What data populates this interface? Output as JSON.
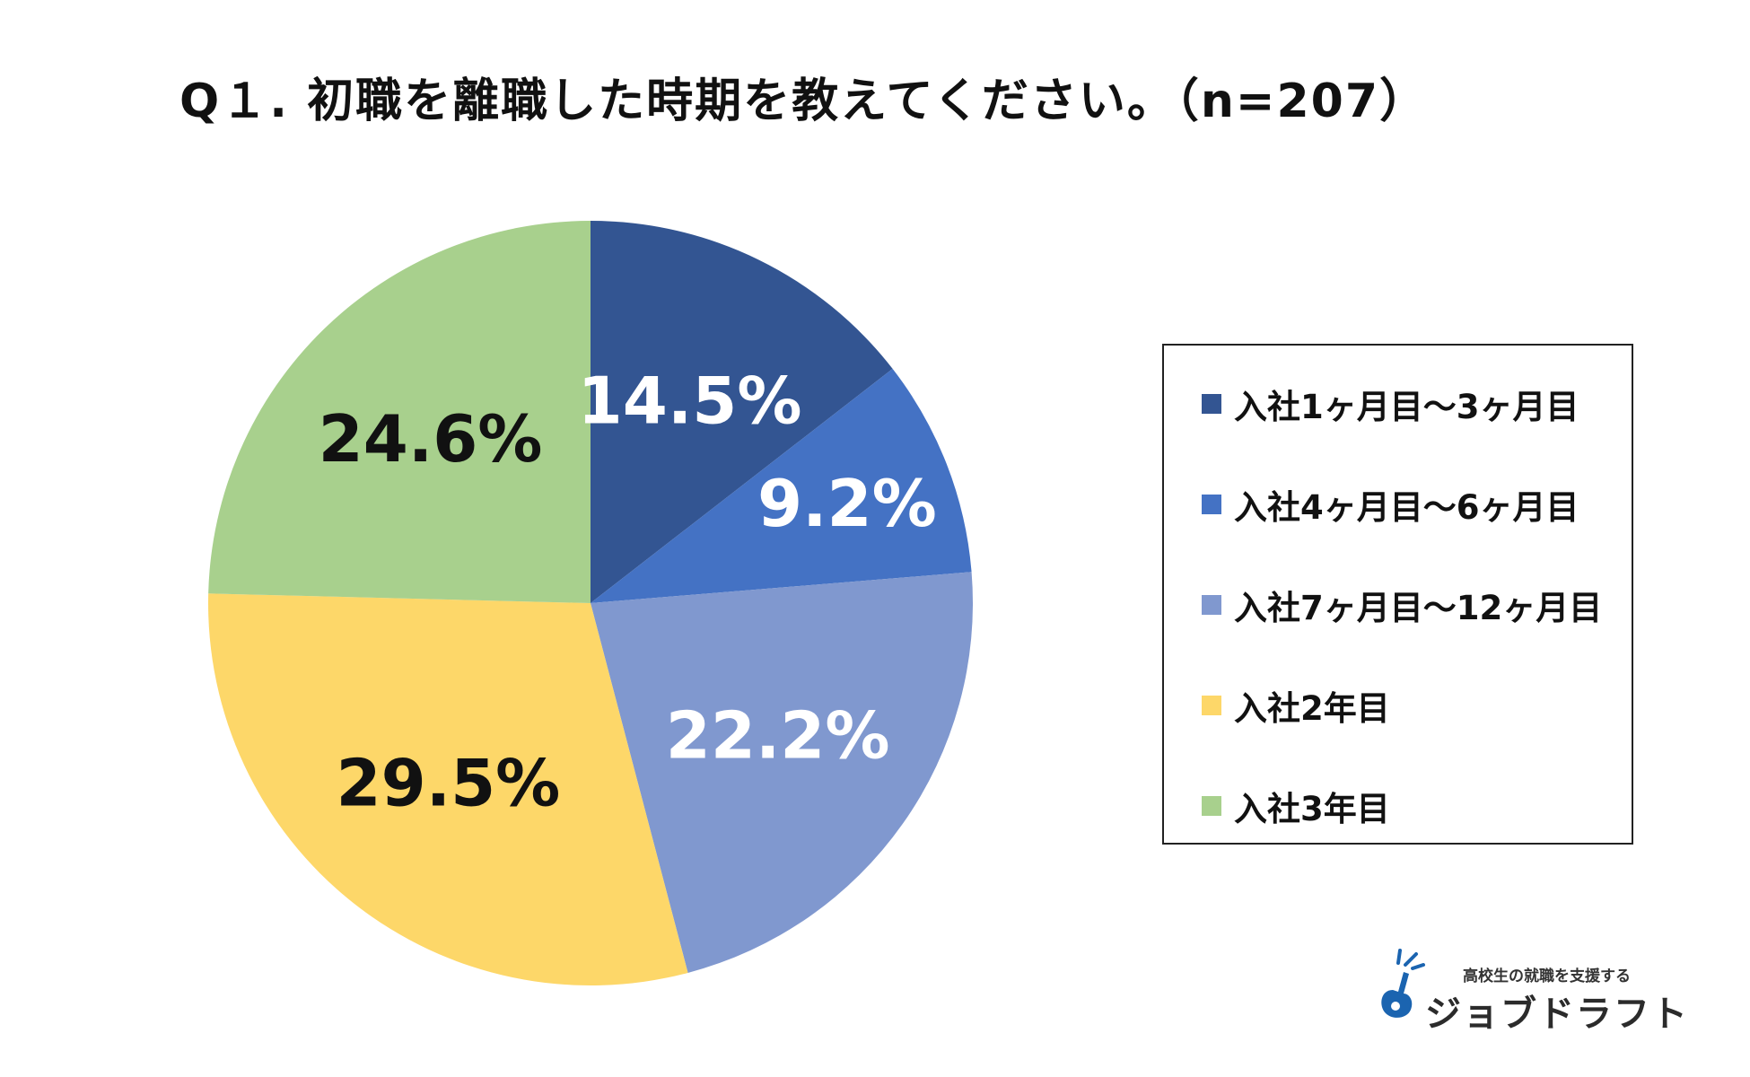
{
  "title": "Q１. 初職を離職した時期を教えてください。（n=207）",
  "chart_data": {
    "type": "pie",
    "title": "Q１. 初職を離職した時期を教えてください。（n=207）",
    "n": 207,
    "start": "12 o'clock",
    "direction": "clockwise",
    "categories": [
      "入社1ヶ月目〜3ヶ月目",
      "入社4ヶ月目〜6ヶ月目",
      "入社7ヶ月目〜12ヶ月目",
      "入社2年目",
      "入社3年目"
    ],
    "values": [
      14.5,
      9.2,
      22.2,
      29.5,
      24.6
    ],
    "labels": [
      "14.5%",
      "9.2%",
      "22.2%",
      "29.5%",
      "24.6%"
    ],
    "colors": [
      "#335592",
      "#4472c4",
      "#8098cf",
      "#fdd769",
      "#a8d08d"
    ],
    "label_colors": [
      "#ffffff",
      "#ffffff",
      "#ffffff",
      "#111111",
      "#111111"
    ],
    "legend_position": "right"
  },
  "logo": {
    "tagline": "高校生の就職を支援する",
    "name": "ジョブドラフト",
    "color": "#1b64b0"
  }
}
